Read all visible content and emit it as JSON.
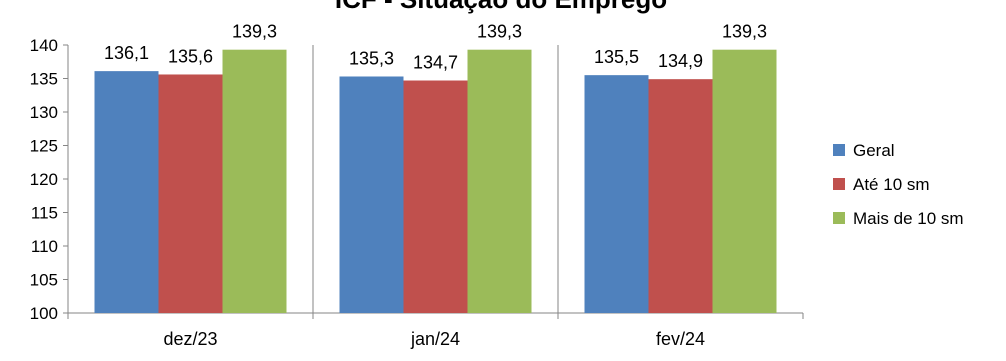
{
  "chart_data": {
    "type": "bar",
    "title": "ICF - Situação do Emprego",
    "categories": [
      "dez/23",
      "jan/24",
      "fev/24"
    ],
    "series": [
      {
        "name": "Geral",
        "color": "#4F81BD",
        "values": [
          136.1,
          135.3,
          135.5
        ]
      },
      {
        "name": "Até 10 sm",
        "color": "#C0504D",
        "values": [
          135.6,
          134.7,
          134.9
        ]
      },
      {
        "name": "Mais de 10 sm",
        "color": "#9BBB59",
        "values": [
          139.3,
          139.3,
          139.3
        ]
      }
    ],
    "value_labels": [
      [
        "136,1",
        "135,3",
        "135,5"
      ],
      [
        "135,6",
        "134,7",
        "134,9"
      ],
      [
        "139,3",
        "139,3",
        "139,3"
      ]
    ],
    "ylim": [
      100,
      140
    ],
    "yticks": [
      100,
      105,
      110,
      115,
      120,
      125,
      130,
      135,
      140
    ],
    "xlabel": "",
    "ylabel": "",
    "grid": false,
    "legend_position": "right"
  }
}
